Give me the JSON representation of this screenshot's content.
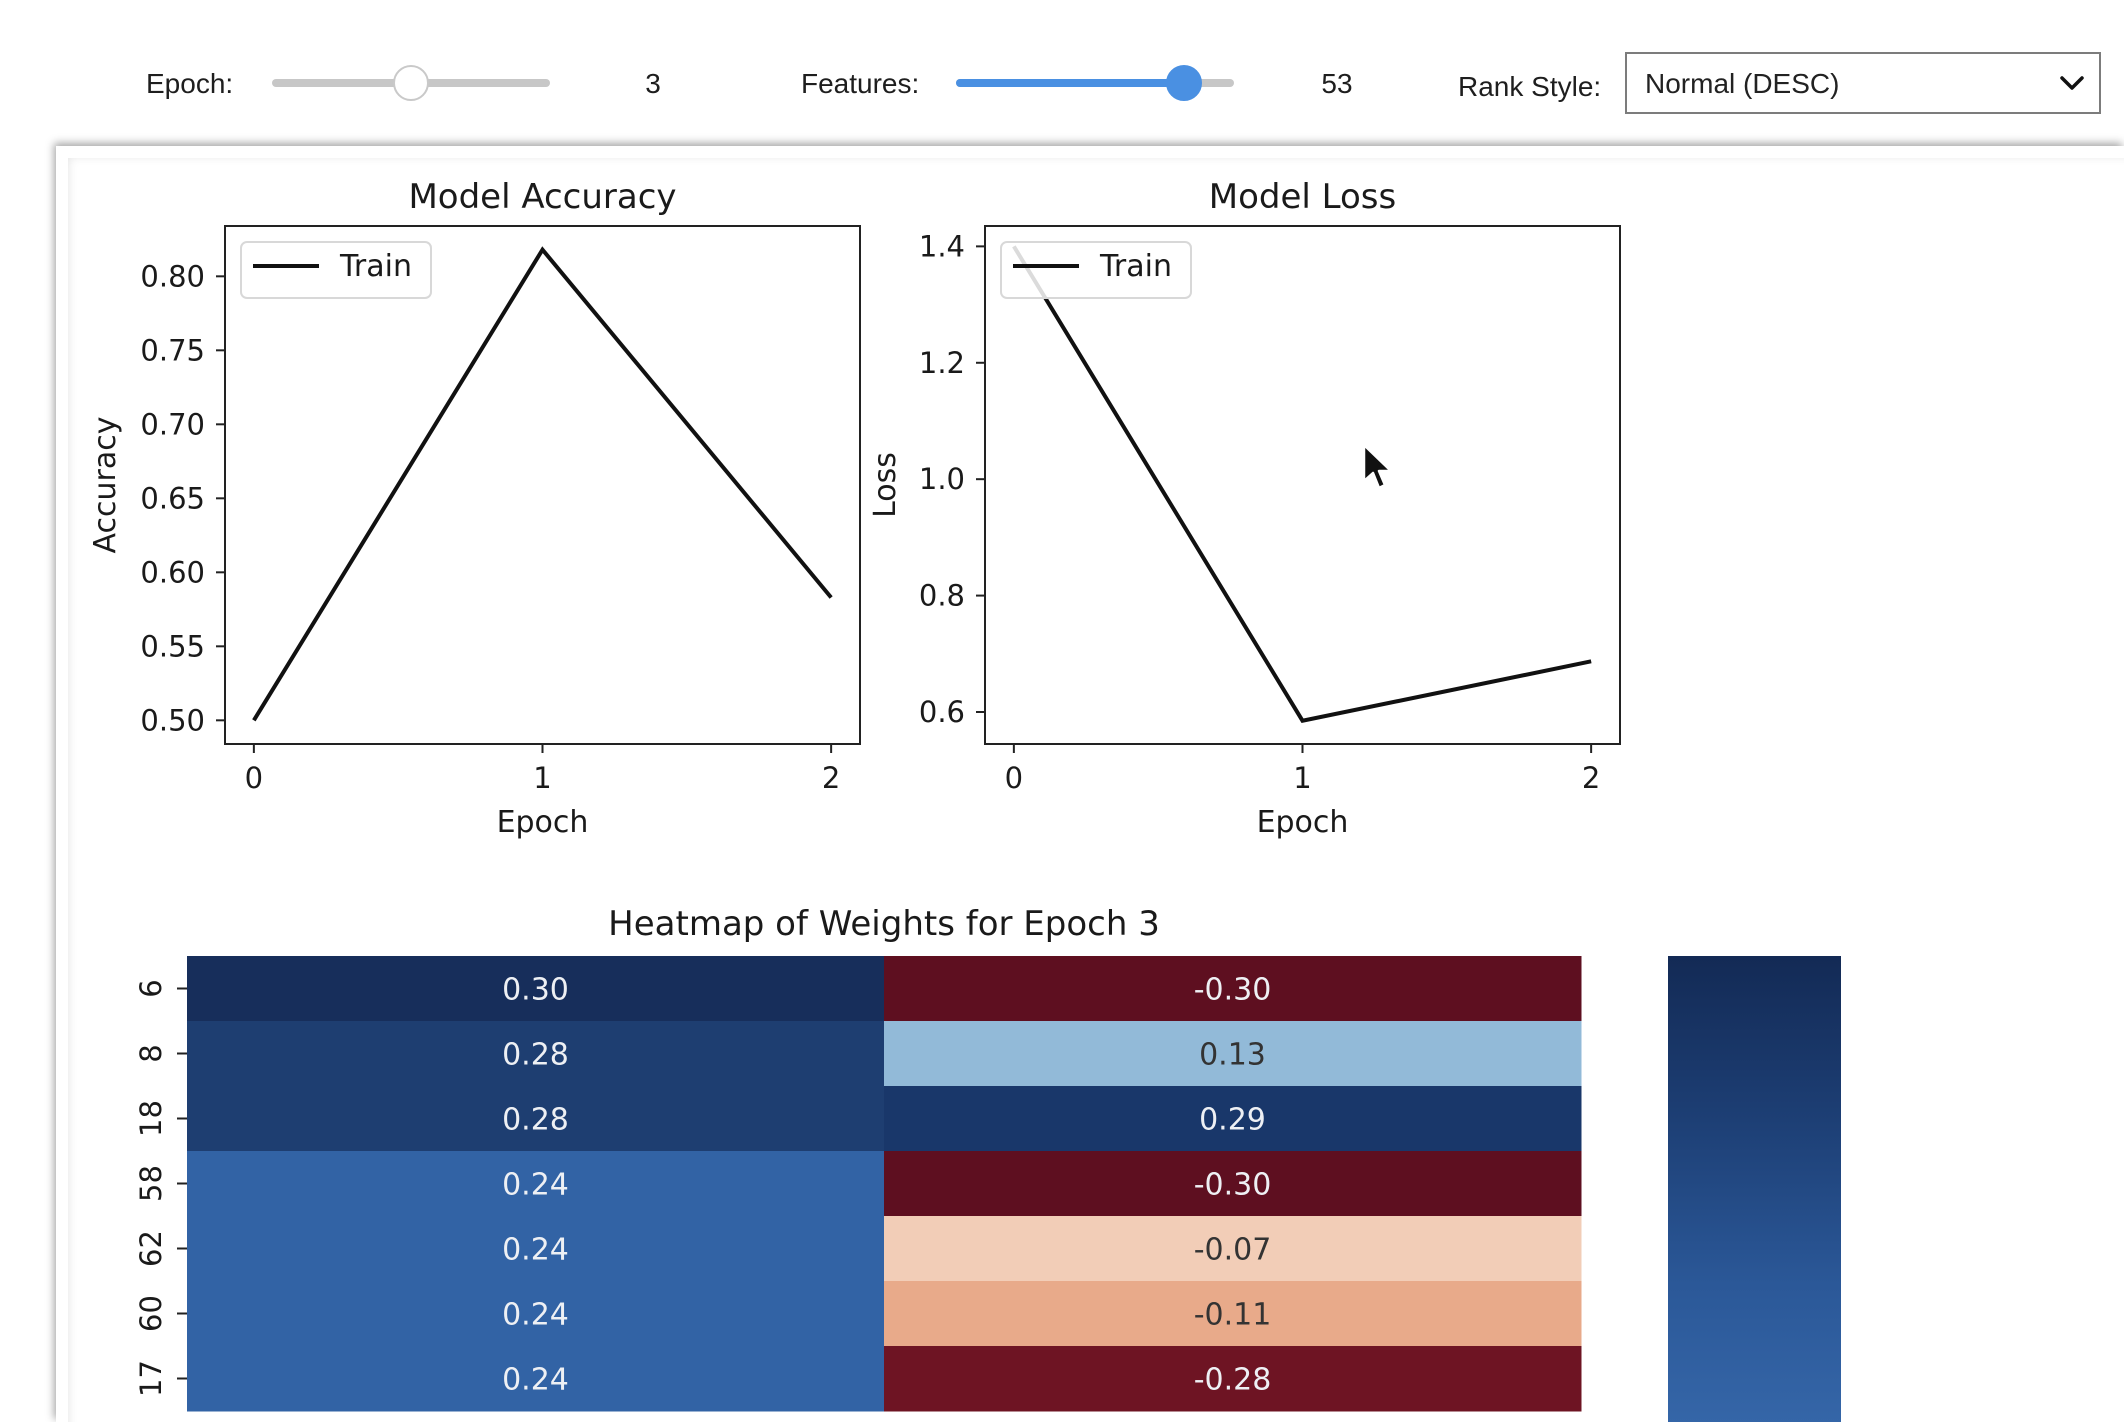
{
  "controls": {
    "epoch": {
      "label": "Epoch:",
      "value": "3",
      "fraction": 0.5
    },
    "features": {
      "label": "Features:",
      "value": "53",
      "fraction": 0.82
    },
    "rank_style": {
      "label": "Rank Style:",
      "selected": "Normal (DESC)"
    }
  },
  "colors": {
    "slider_active": "#4a90e2",
    "heat_pos_strong": "#163060",
    "heat_neg_strong": "#5e0f20"
  },
  "chart_data": [
    {
      "type": "line",
      "title": "Model Accuracy",
      "xlabel": "Epoch",
      "ylabel": "Accuracy",
      "x": [
        0,
        1,
        2
      ],
      "series": [
        {
          "name": "Train",
          "values": [
            0.5,
            0.818,
            0.583
          ],
          "color": "#111111"
        }
      ],
      "xticks": [
        "0",
        "1",
        "2"
      ],
      "yticks": [
        "0.50",
        "0.55",
        "0.60",
        "0.65",
        "0.70",
        "0.75",
        "0.80"
      ],
      "ylim": [
        0.484,
        0.834
      ],
      "xlim": [
        -0.1,
        2.1
      ],
      "legend": "top-left",
      "grid": false
    },
    {
      "type": "line",
      "title": "Model Loss",
      "xlabel": "Epoch",
      "ylabel": "Loss",
      "x": [
        0,
        1,
        2
      ],
      "series": [
        {
          "name": "Train",
          "values": [
            1.4,
            0.585,
            0.687
          ],
          "color": "#111111"
        }
      ],
      "xticks": [
        "0",
        "1",
        "2"
      ],
      "yticks": [
        "0.6",
        "0.8",
        "1.0",
        "1.2",
        "1.4"
      ],
      "ylim": [
        0.545,
        1.435
      ],
      "xlim": [
        -0.1,
        2.1
      ],
      "legend": "top-left",
      "grid": false
    },
    {
      "type": "heatmap",
      "title": "Heatmap of Weights for Epoch 3",
      "rows": [
        "6",
        "8",
        "18",
        "58",
        "62",
        "60",
        "17"
      ],
      "values": [
        [
          0.3,
          -0.3
        ],
        [
          0.28,
          0.13
        ],
        [
          0.28,
          0.29
        ],
        [
          0.24,
          -0.3
        ],
        [
          0.24,
          -0.07
        ],
        [
          0.24,
          -0.11
        ],
        [
          0.24,
          -0.28
        ]
      ],
      "labels": [
        [
          "0.30",
          "-0.30"
        ],
        [
          "0.28",
          "0.13"
        ],
        [
          "0.28",
          "0.29"
        ],
        [
          "0.24",
          "-0.30"
        ],
        [
          "0.24",
          "-0.07"
        ],
        [
          "0.24",
          "-0.11"
        ],
        [
          "0.24",
          "-0.28"
        ]
      ],
      "cell_colors": [
        [
          "#172e5b",
          "#5e0f20"
        ],
        [
          "#1e3e71",
          "#92bad8"
        ],
        [
          "#1e3e71",
          "#19376a"
        ],
        [
          "#3263a5",
          "#5e0f20"
        ],
        [
          "#3263a5",
          "#f2cdb7"
        ],
        [
          "#3263a5",
          "#e8aa8a"
        ],
        [
          "#3263a5",
          "#6e1423"
        ]
      ],
      "colormap": "RdBu",
      "colorbar": true
    }
  ]
}
